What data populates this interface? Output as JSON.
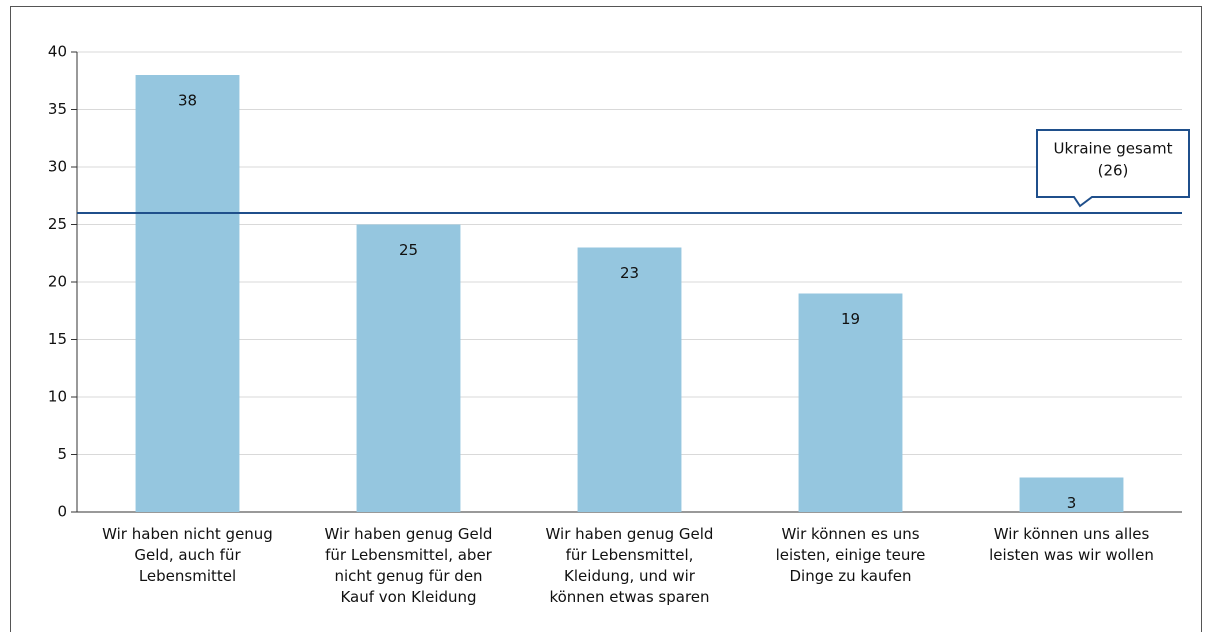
{
  "chart_data": {
    "type": "bar",
    "categories": [
      "Wir haben nicht genug\nGeld, auch für\nLebensmittel",
      "Wir haben genug Geld\nfür Lebensmittel, aber\nnicht genug für den\nKauf von Kleidung",
      "Wir haben genug Geld\nfür Lebensmittel,\nKleidung, und wir\nkönnen etwas sparen",
      "Wir können es uns\nleisten, einige teure\nDinge zu kaufen",
      "Wir können uns alles\nleisten was wir wollen"
    ],
    "values": [
      38,
      25,
      23,
      19,
      3
    ],
    "color": "#95c6df",
    "ylim": [
      0,
      40
    ],
    "yticks": [
      0,
      5,
      10,
      15,
      20,
      25,
      30,
      35,
      40
    ],
    "grid": true,
    "reference_line": {
      "value": 26,
      "label": "Ukraine gesamt",
      "value_label": "(26)",
      "color": "#1f4f8b"
    }
  }
}
